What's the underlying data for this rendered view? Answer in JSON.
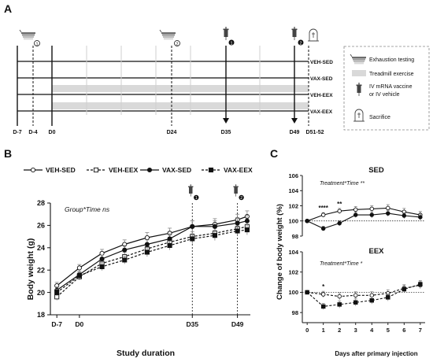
{
  "panels": {
    "a": {
      "letter": "A",
      "rows": [
        "VEH-SED",
        "VAX-SED",
        "VEH-EEX",
        "VAX-EEX"
      ],
      "timeline_labels": [
        "D-7",
        "D-4",
        "D0",
        "D24",
        "D35",
        "D49",
        "D51-52"
      ],
      "exhaustion_marks": [
        "1",
        "2"
      ],
      "injection_marks": [
        "1",
        "2"
      ],
      "legend": {
        "exhaustion": "Exhaustion testing",
        "treadmill": "Treadmill exercise",
        "vaccine_line1": "IV mRNA vaccine",
        "vaccine_line2": "or IV vehicle",
        "sacrifice": "Sacrifice"
      },
      "colors": {
        "treadmill": "#d9d9d9",
        "border": "#888888"
      }
    },
    "b": {
      "letter": "B"
    },
    "c": {
      "letter": "C"
    }
  },
  "chart_data": [
    {
      "type": "line",
      "panel": "B",
      "ylabel": "Body weight (g)",
      "xlabel": "Study duration",
      "annotation": "Group*Time ns",
      "ylim": [
        18,
        28
      ],
      "yticks": [
        18,
        20,
        22,
        24,
        26,
        28
      ],
      "x_tick_labels": [
        {
          "x": 0,
          "label": "D-7"
        },
        {
          "x": 7,
          "label": "D0"
        },
        {
          "x": 42,
          "label": "D35"
        },
        {
          "x": 56,
          "label": "D49"
        }
      ],
      "injection_marks": [
        {
          "x": 42,
          "label": "1"
        },
        {
          "x": 56,
          "label": "2"
        }
      ],
      "x": [
        0,
        7,
        14,
        21,
        28,
        35,
        42,
        49,
        56,
        59
      ],
      "series": [
        {
          "name": "VEH-SED",
          "marker": "open-circle",
          "dash": "solid",
          "values": [
            20.6,
            22.2,
            23.5,
            24.3,
            24.9,
            25.3,
            25.9,
            26.1,
            26.5,
            26.8
          ],
          "errors": [
            0.3,
            0.3,
            0.35,
            0.4,
            0.45,
            0.45,
            0.5,
            0.5,
            0.5,
            0.5
          ]
        },
        {
          "name": "VEH-EEX",
          "marker": "open-square",
          "dash": "dashed",
          "values": [
            19.6,
            21.4,
            22.6,
            23.2,
            23.9,
            24.5,
            25.0,
            25.3,
            25.7,
            25.9
          ],
          "errors": [
            0.3,
            0.3,
            0.35,
            0.4,
            0.4,
            0.45,
            0.45,
            0.45,
            0.5,
            0.5
          ]
        },
        {
          "name": "VAX-SED",
          "marker": "filled-circle",
          "dash": "solid",
          "values": [
            20.2,
            21.6,
            23.0,
            23.8,
            24.3,
            24.8,
            25.9,
            25.9,
            26.2,
            26.4
          ],
          "errors": [
            0.3,
            0.3,
            0.35,
            0.4,
            0.4,
            0.45,
            0.5,
            0.5,
            0.5,
            0.5
          ]
        },
        {
          "name": "VAX-EEX",
          "marker": "filled-square",
          "dash": "dashed",
          "values": [
            20.0,
            21.5,
            22.3,
            22.9,
            23.6,
            24.2,
            24.8,
            25.1,
            25.5,
            25.6
          ],
          "errors": [
            0.3,
            0.3,
            0.35,
            0.35,
            0.4,
            0.4,
            0.45,
            0.45,
            0.45,
            0.45
          ]
        }
      ]
    },
    {
      "type": "line",
      "panel": "C",
      "ylabel": "Change of body weight (%)",
      "xlabel": "Days after primary injection",
      "x": [
        0,
        1,
        2,
        3,
        4,
        5,
        6,
        7
      ],
      "xticks": [
        0,
        1,
        2,
        3,
        4,
        5,
        6,
        7
      ],
      "subplots": [
        {
          "title": "SED",
          "annotation": "Treatment*Time **",
          "ylim": [
            98,
            106
          ],
          "yticks": [
            98,
            100,
            102,
            104,
            106
          ],
          "reference": 100,
          "significance": [
            {
              "x": 1,
              "label": "****"
            },
            {
              "x": 2,
              "label": "**"
            }
          ],
          "series": [
            {
              "name": "VEH",
              "marker": "open-circle",
              "dash": "solid",
              "values": [
                100,
                100.8,
                101.3,
                101.5,
                101.6,
                101.7,
                101.2,
                100.8
              ],
              "errors": [
                0,
                0.3,
                0.35,
                0.4,
                0.4,
                0.45,
                0.45,
                0.45
              ]
            },
            {
              "name": "VAX",
              "marker": "filled-circle",
              "dash": "solid",
              "values": [
                100,
                99.0,
                99.7,
                100.8,
                100.8,
                101.0,
                100.7,
                100.5
              ],
              "errors": [
                0,
                0.3,
                0.35,
                0.35,
                0.4,
                0.4,
                0.4,
                0.4
              ]
            }
          ]
        },
        {
          "title": "EEX",
          "annotation": "Treatment*Time *",
          "ylim": [
            97,
            104
          ],
          "yticks": [
            98,
            100,
            102,
            104
          ],
          "reference": 100,
          "significance": [
            {
              "x": 1,
              "label": "*"
            }
          ],
          "series": [
            {
              "name": "VEH",
              "marker": "open-circle",
              "dash": "dashed",
              "values": [
                100,
                99.8,
                99.6,
                99.7,
                99.7,
                99.9,
                100.4,
                100.7
              ],
              "errors": [
                0,
                0.3,
                0.35,
                0.35,
                0.35,
                0.35,
                0.35,
                0.35
              ]
            },
            {
              "name": "VAX",
              "marker": "filled-square",
              "dash": "dashed",
              "values": [
                100,
                98.6,
                98.8,
                99.0,
                99.2,
                99.5,
                100.3,
                100.8
              ],
              "errors": [
                0,
                0.3,
                0.35,
                0.35,
                0.35,
                0.35,
                0.35,
                0.35
              ]
            }
          ]
        }
      ]
    }
  ]
}
